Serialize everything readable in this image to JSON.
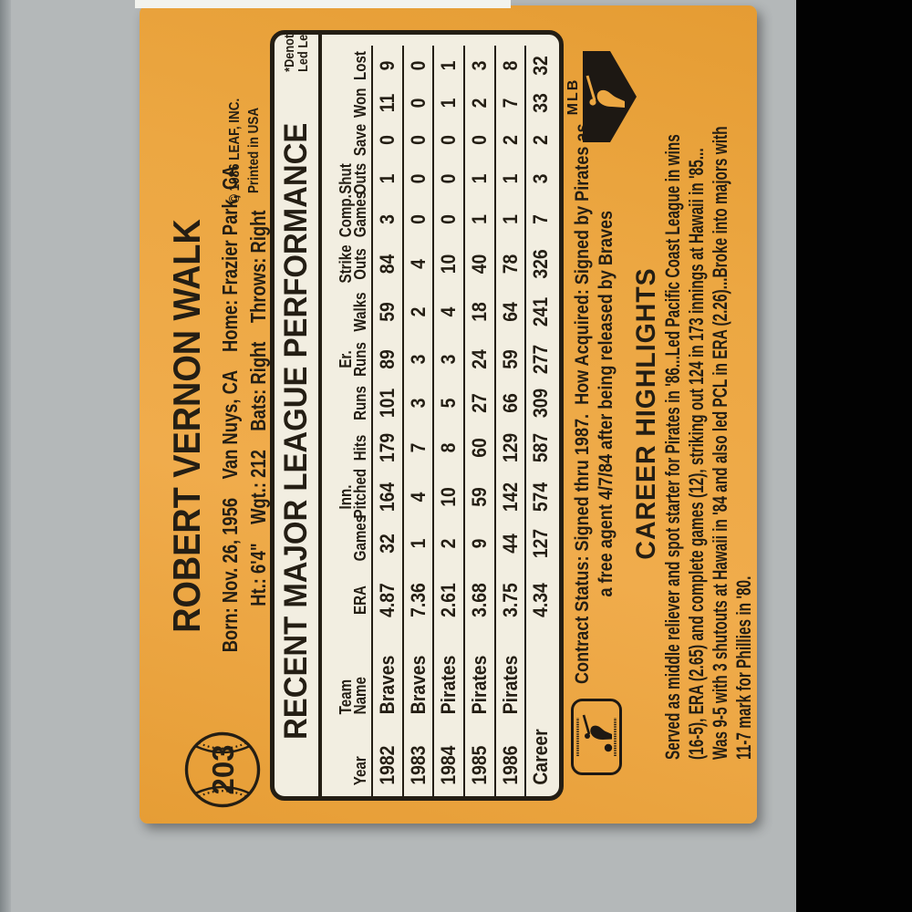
{
  "card": {
    "number": "203",
    "player_name": "ROBERT VERNON WALK",
    "bio_line1": "Born: Nov. 26, 1956    Van Nuys, CA    Home: Frazier Park, CA",
    "bio_line2": "Ht.: 6'4\"    Wgt.: 212    Bats: Right    Throws: Right",
    "copyright_line1": "© 1986 LEAF, INC.",
    "copyright_line2": "Printed in USA",
    "table": {
      "title": "RECENT MAJOR LEAGUE PERFORMANCE",
      "denotes_note": "*Denotes\nLed League",
      "columns": [
        [
          "Year"
        ],
        [
          "Team",
          "Name"
        ],
        [
          "ERA"
        ],
        [
          "Games"
        ],
        [
          "Inn.",
          "Pitched"
        ],
        [
          "Hits"
        ],
        [
          "Runs"
        ],
        [
          "Er.",
          "Runs"
        ],
        [
          "Walks"
        ],
        [
          "Strike",
          "Outs"
        ],
        [
          "Comp.",
          "Games"
        ],
        [
          "Shut",
          "Outs"
        ],
        [
          "Save"
        ],
        [
          "Won"
        ],
        [
          "Lost"
        ]
      ],
      "rows": [
        [
          "1982",
          "Braves",
          "4.87",
          "32",
          "164",
          "179",
          "101",
          "89",
          "59",
          "84",
          "3",
          "1",
          "0",
          "11",
          "9"
        ],
        [
          "1983",
          "Braves",
          "7.36",
          "1",
          "4",
          "7",
          "3",
          "3",
          "2",
          "4",
          "0",
          "0",
          "0",
          "0",
          "0"
        ],
        [
          "1984",
          "Pirates",
          "2.61",
          "2",
          "10",
          "8",
          "5",
          "3",
          "4",
          "10",
          "0",
          "0",
          "0",
          "1",
          "1"
        ],
        [
          "1985",
          "Pirates",
          "3.68",
          "9",
          "59",
          "60",
          "27",
          "24",
          "18",
          "40",
          "1",
          "1",
          "0",
          "2",
          "3"
        ],
        [
          "1986",
          "Pirates",
          "3.75",
          "44",
          "142",
          "129",
          "66",
          "59",
          "64",
          "78",
          "1",
          "1",
          "2",
          "7",
          "8"
        ],
        [
          "Career",
          "",
          "4.34",
          "127",
          "574",
          "587",
          "309",
          "277",
          "241",
          "326",
          "7",
          "3",
          "2",
          "33",
          "32"
        ]
      ]
    },
    "contract_line1": "Contract Status: Signed thru 1987.  How Acquired: Signed by Pirates as",
    "contract_line2": "a free agent 4/7/84 after being released by Braves",
    "career": {
      "heading": "CAREER HIGHLIGHTS",
      "line1": "Served as middle reliever and spot starter for Pirates in '86...Led Pacific Coast League in wins",
      "line2": "(16-5), ERA (2.65) and complete games (12), striking out 124 in 173 innings at Hawaii in '85...",
      "line3": "Was 9-5 with 3 shutouts at Hawaii in '84 and also led PCL in ERA (2.26)...Broke into majors with",
      "line4": "11-7 mark for Phillies in '80."
    },
    "mlb_logo_text": "MLB",
    "colors": {
      "card_orange": "#eca742",
      "ink": "#241e14",
      "table_cream": "#f2eee1",
      "scan_gray": "#b4b8b9",
      "right_bar_black": "#020202"
    }
  }
}
